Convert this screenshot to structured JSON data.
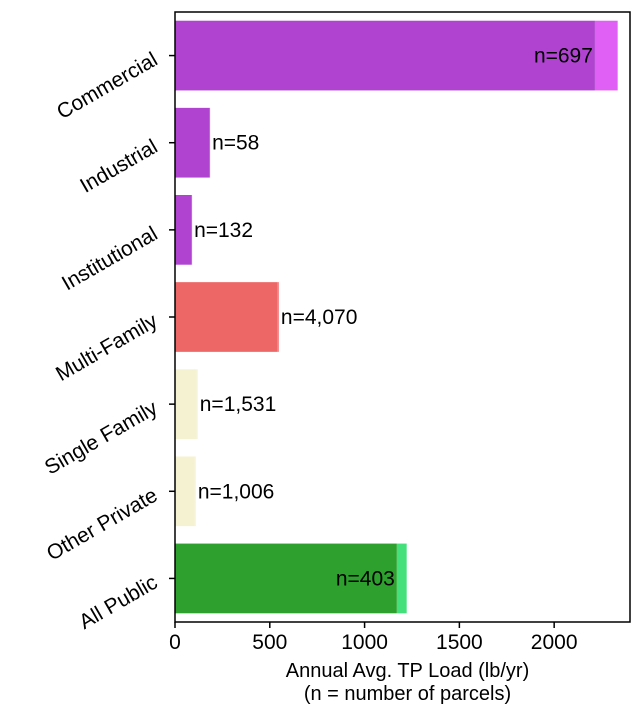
{
  "chart_data": {
    "type": "bar",
    "orientation": "horizontal",
    "categories": [
      "Commercial",
      "Industrial",
      "Institutional",
      "Multi-Family",
      "Single Family",
      "Other Private",
      "All Public"
    ],
    "values": [
      2215,
      180,
      85,
      540,
      115,
      105,
      1170
    ],
    "upper_values": [
      2335,
      185,
      90,
      548,
      120,
      110,
      1222
    ],
    "bar_labels": [
      "n=697",
      "n=58",
      "n=132",
      "n=4,070",
      "n=1,531",
      "n=1,006",
      "n=403"
    ],
    "bar_colors": [
      "#b044d0",
      "#b044d0",
      "#b044d0",
      "#ee6767",
      "#f5f2d2",
      "#f5f2d2",
      "#2ea02e"
    ],
    "upper_colors": [
      "#e060f5",
      "#c455e0",
      "#c455e0",
      "#f48080",
      "#f7f4dc",
      "#f7f4dc",
      "#44e07c"
    ],
    "xlabel": "Annual Avg. TP Load (lb/yr)",
    "xlabel_line2": "(n = number of parcels)",
    "ylabel": "",
    "title": "",
    "xlim": [
      0,
      2400
    ],
    "xticks": [
      0,
      500,
      1000,
      1500,
      2000
    ],
    "xtick_labels": [
      "0",
      "500",
      "1000",
      "1500",
      "2000"
    ],
    "grid": false
  }
}
